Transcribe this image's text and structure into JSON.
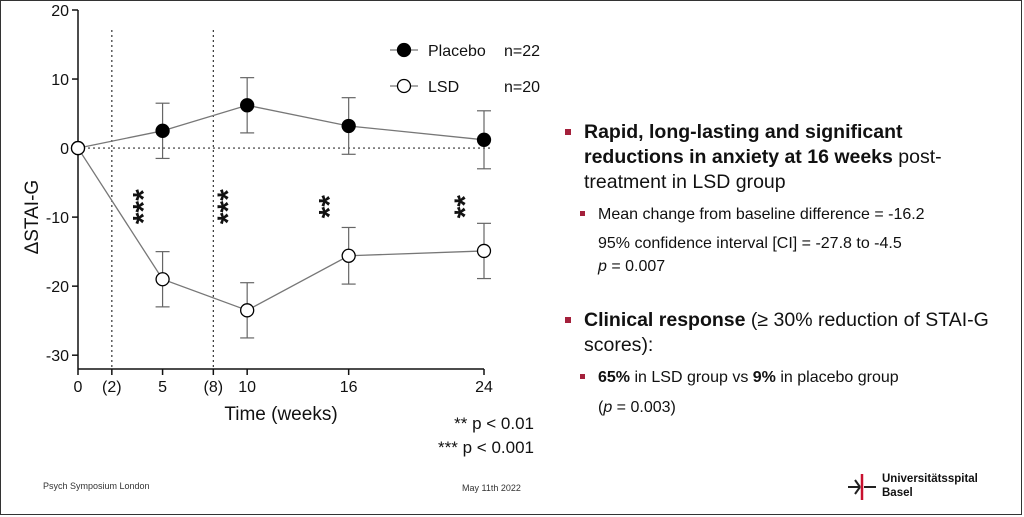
{
  "chart_data": {
    "type": "line",
    "xlabel": "Time (weeks)",
    "ylabel": "ΔSTAI-G",
    "xlim": [
      0,
      24
    ],
    "ylim": [
      -32,
      20
    ],
    "x_ticks": [
      0,
      2,
      5,
      8,
      10,
      16,
      24
    ],
    "x_tick_labels": [
      "0",
      "(2)",
      "5",
      "(8)",
      "10",
      "16",
      "24"
    ],
    "y_ticks": [
      20,
      10,
      0,
      -10,
      -20,
      -30
    ],
    "y_tick_labels": [
      "20",
      "10",
      "0",
      "-10",
      "-20",
      "-30"
    ],
    "reference_lines": {
      "vertical_dotted": [
        2,
        8
      ],
      "horizontal_dotted": [
        0
      ]
    },
    "series": [
      {
        "name": "Placebo",
        "n_label": "n=22",
        "marker": "filled-circle",
        "color": "#000000",
        "x": [
          0,
          5,
          10,
          16,
          24
        ],
        "y": [
          0,
          2.5,
          6.2,
          3.2,
          1.2
        ],
        "err": [
          0,
          4.0,
          4.0,
          4.1,
          4.2
        ]
      },
      {
        "name": "LSD",
        "n_label": "n=20",
        "marker": "open-circle",
        "color": "#000000",
        "x": [
          0,
          5,
          10,
          16,
          24
        ],
        "y": [
          0,
          -19.0,
          -23.5,
          -15.6,
          -14.9
        ],
        "err": [
          0,
          4.0,
          4.0,
          4.1,
          4.0
        ]
      }
    ],
    "annotations": [
      {
        "x": 5,
        "text": "***"
      },
      {
        "x": 10,
        "text": "***"
      },
      {
        "x": 16,
        "text": "**"
      },
      {
        "x": 24,
        "text": "**"
      }
    ]
  },
  "pvals": {
    "two_star": "** p < 0.01",
    "three_star": "*** p < 0.001"
  },
  "bullets": {
    "b1_bold": "Rapid, long-lasting and significant reductions in anxiety at 16 weeks",
    "b1_rest": " post-treatment in LSD group",
    "b1_sub1": "Mean change from baseline difference = -16.2",
    "b1_sub2": "95% confidence interval [CI] = -27.8 to -4.5",
    "b1_sub3_p": "p",
    "b1_sub3_rest": " = 0.007",
    "b2_bold": "Clinical response",
    "b2_rest": " (≥ 30% reduction of STAI-G scores",
    "b2_tail": "):",
    "b2_sub1_a": "65%",
    "b2_sub1_b": " in LSD group vs ",
    "b2_sub1_c": "9%",
    "b2_sub1_d": " in placebo group",
    "b2_sub2_open": "(",
    "b2_sub2_p": "p",
    "b2_sub2_rest": " = 0.003)"
  },
  "footer": {
    "left": "Psych Symposium London",
    "date": "May 11th 2022"
  },
  "logo": {
    "line1": "Universitätsspital",
    "line2": "Basel",
    "accent": "#c8102e"
  },
  "accent_color": "#a4203b"
}
